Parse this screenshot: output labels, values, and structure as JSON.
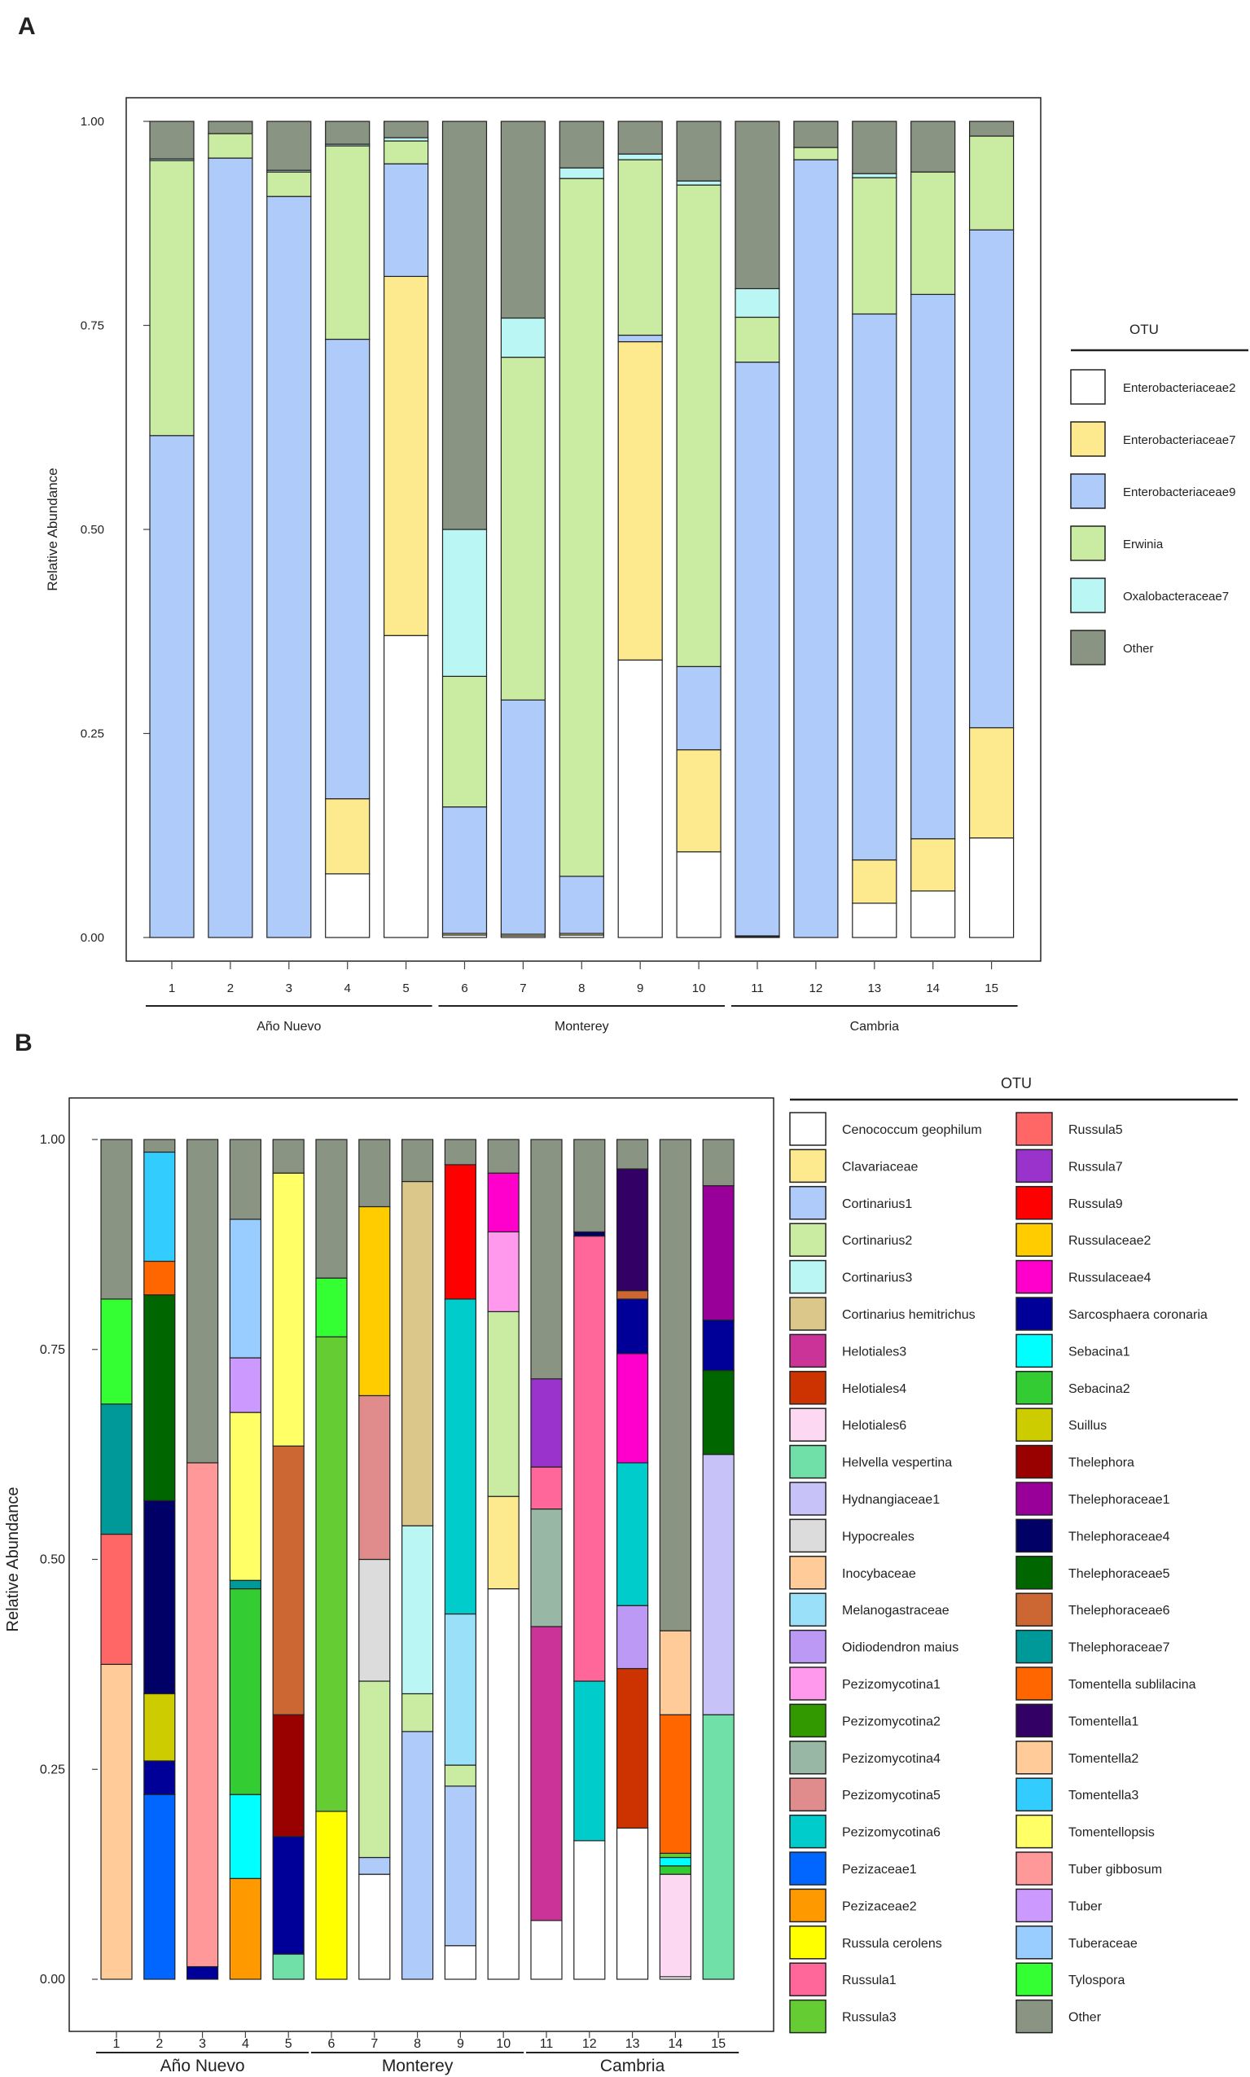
{
  "panel_a": {
    "label": "A",
    "legend_title": "OTU",
    "chart_data": {
      "type": "bar",
      "stacked": true,
      "ylabel": "Relative Abundance",
      "ylim": [
        0,
        1
      ],
      "yticks": [
        "0.00",
        "0.25",
        "0.50",
        "0.75",
        "1.00"
      ],
      "categories": [
        "1",
        "2",
        "3",
        "4",
        "5",
        "6",
        "7",
        "8",
        "9",
        "10",
        "11",
        "12",
        "13",
        "14",
        "15"
      ],
      "groups": [
        {
          "name": "Año Nuevo",
          "from": 1,
          "to": 5
        },
        {
          "name": "Monterey",
          "from": 6,
          "to": 10
        },
        {
          "name": "Cambria",
          "from": 11,
          "to": 15
        }
      ],
      "series": [
        {
          "name": "Enterobacteriaceae2",
          "color": "#ffffff",
          "values": [
            0,
            0,
            0,
            0.078,
            0.37,
            0.003,
            0.002,
            0.003,
            0.34,
            0.105,
            0.001,
            0,
            0.042,
            0.057,
            0.122
          ]
        },
        {
          "name": "Enterobacteriaceae7",
          "color": "#fde98e",
          "values": [
            0,
            0,
            0,
            0.092,
            0.44,
            0.002,
            0.002,
            0.002,
            0.39,
            0.125,
            0.001,
            0,
            0.053,
            0.064,
            0.135
          ]
        },
        {
          "name": "Enterobacteriaceae9",
          "color": "#aecbf9",
          "values": [
            0.615,
            0.955,
            0.908,
            0.563,
            0.138,
            0.155,
            0.287,
            0.07,
            0.008,
            0.102,
            0.703,
            0.953,
            0.669,
            0.667,
            0.61
          ]
        },
        {
          "name": "Erwinia",
          "color": "#c9eba2",
          "values": [
            0.337,
            0.03,
            0.03,
            0.237,
            0.028,
            0.16,
            0.42,
            0.855,
            0.215,
            0.59,
            0.055,
            0.015,
            0.167,
            0.15,
            0.115
          ]
        },
        {
          "name": "Oxalobacteraceae7",
          "color": "#b9f6f4",
          "values": [
            0.002,
            0,
            0.002,
            0.002,
            0.004,
            0.18,
            0.048,
            0.013,
            0.007,
            0.005,
            0.035,
            0,
            0.005,
            0,
            0
          ]
        },
        {
          "name": "Other",
          "color": "#8a9482",
          "values": [
            0.046,
            0.015,
            0.06,
            0.028,
            0.02,
            0.5,
            0.241,
            0.057,
            0.04,
            0.073,
            0.205,
            0.032,
            0.064,
            0.062,
            0.018
          ]
        }
      ]
    }
  },
  "panel_b": {
    "label": "B",
    "legend_title": "OTU",
    "chart_data": {
      "type": "bar",
      "stacked": true,
      "ylabel": "Relative Abundance",
      "ylim": [
        0,
        1
      ],
      "yticks": [
        "0.00",
        "0.25",
        "0.50",
        "0.75",
        "1.00"
      ],
      "categories": [
        "1",
        "2",
        "3",
        "4",
        "5",
        "6",
        "7",
        "8",
        "9",
        "10",
        "11",
        "12",
        "13",
        "14",
        "15"
      ],
      "groups": [
        {
          "name": "Año Nuevo",
          "from": 1,
          "to": 5
        },
        {
          "name": "Monterey",
          "from": 6,
          "to": 10
        },
        {
          "name": "Cambria",
          "from": 11,
          "to": 15
        }
      ],
      "legend": [
        {
          "name": "Cenococcum geophilum",
          "color": "#ffffff"
        },
        {
          "name": "Clavariaceae",
          "color": "#fde98e"
        },
        {
          "name": "Cortinarius1",
          "color": "#aecbf9"
        },
        {
          "name": "Cortinarius2",
          "color": "#c9eba2"
        },
        {
          "name": "Cortinarius3",
          "color": "#b9f6f4"
        },
        {
          "name": "Cortinarius hemitrichus",
          "color": "#dcc78a"
        },
        {
          "name": "Helotiales3",
          "color": "#cc3399"
        },
        {
          "name": "Helotiales4",
          "color": "#cc3300"
        },
        {
          "name": "Helotiales6",
          "color": "#fcd8f2"
        },
        {
          "name": "Helvella vespertina",
          "color": "#70dfa8"
        },
        {
          "name": "Hydnangiaceae1",
          "color": "#c7c3f8"
        },
        {
          "name": "Hypocreales",
          "color": "#dcdcdc"
        },
        {
          "name": "Inocybaceae",
          "color": "#ffcc99"
        },
        {
          "name": "Melanogastraceae",
          "color": "#99e0f8"
        },
        {
          "name": "Oidiodendron maius",
          "color": "#bb99f5"
        },
        {
          "name": "Pezizomycotina1",
          "color": "#ff99ee"
        },
        {
          "name": "Pezizomycotina2",
          "color": "#339900"
        },
        {
          "name": "Pezizomycotina4",
          "color": "#99b7a5"
        },
        {
          "name": "Pezizomycotina5",
          "color": "#e08c8c"
        },
        {
          "name": "Pezizomycotina6",
          "color": "#00cccc"
        },
        {
          "name": "Pezizaceae1",
          "color": "#0066ff"
        },
        {
          "name": "Pezizaceae2",
          "color": "#ff9900"
        },
        {
          "name": "Russula cerolens",
          "color": "#ffff00"
        },
        {
          "name": "Russula1",
          "color": "#ff6699"
        },
        {
          "name": "Russula3",
          "color": "#66cc33"
        },
        {
          "name": "Russula5",
          "color": "#ff6666"
        },
        {
          "name": "Russula7",
          "color": "#9933cc"
        },
        {
          "name": "Russula9",
          "color": "#ff0000"
        },
        {
          "name": "Russulaceae2",
          "color": "#ffcc00"
        },
        {
          "name": "Russulaceae4",
          "color": "#ff00cc"
        },
        {
          "name": "Sarcosphaera coronaria",
          "color": "#000099"
        },
        {
          "name": "Sebacina1",
          "color": "#00ffff"
        },
        {
          "name": "Sebacina2",
          "color": "#33cc33"
        },
        {
          "name": "Suillus",
          "color": "#cccc00"
        },
        {
          "name": "Thelephora",
          "color": "#990000"
        },
        {
          "name": "Thelephoraceae1",
          "color": "#990099"
        },
        {
          "name": "Thelephoraceae4",
          "color": "#000066"
        },
        {
          "name": "Thelephoraceae5",
          "color": "#006600"
        },
        {
          "name": "Thelephoraceae6",
          "color": "#cc6633"
        },
        {
          "name": "Thelephoraceae7",
          "color": "#009999"
        },
        {
          "name": "Tomentella sublilacina",
          "color": "#ff6600"
        },
        {
          "name": "Tomentella1",
          "color": "#330066"
        },
        {
          "name": "Tomentella2",
          "color": "#ffcc99"
        },
        {
          "name": "Tomentella3",
          "color": "#33ccff"
        },
        {
          "name": "Tomentellopsis",
          "color": "#ffff66"
        },
        {
          "name": "Tuber gibbosum",
          "color": "#ff9999"
        },
        {
          "name": "Tuber",
          "color": "#cc99ff"
        },
        {
          "name": "Tuberaceae",
          "color": "#99ccff"
        },
        {
          "name": "Tylospora",
          "color": "#33ff33"
        },
        {
          "name": "Other",
          "color": "#8a9482"
        }
      ],
      "bars": [
        {
          "sample": "1",
          "segments": [
            {
              "otu": "Inocybaceae",
              "value": 0.375
            },
            {
              "otu": "Russula5",
              "value": 0.155
            },
            {
              "otu": "Thelephoraceae7",
              "value": 0.155
            },
            {
              "otu": "Tylospora",
              "value": 0.125
            },
            {
              "otu": "Other",
              "value": 0.19
            }
          ]
        },
        {
          "sample": "2",
          "segments": [
            {
              "otu": "Pezizaceae1",
              "value": 0.22
            },
            {
              "otu": "Sarcosphaera coronaria",
              "value": 0.04
            },
            {
              "otu": "Suillus",
              "value": 0.08
            },
            {
              "otu": "Thelephoraceae4",
              "value": 0.23
            },
            {
              "otu": "Thelephoraceae5",
              "value": 0.245
            },
            {
              "otu": "Tomentella sublilacina",
              "value": 0.04
            },
            {
              "otu": "Tomentella3",
              "value": 0.13
            },
            {
              "otu": "Other",
              "value": 0.015
            }
          ]
        },
        {
          "sample": "3",
          "segments": [
            {
              "otu": "Sarcosphaera coronaria",
              "value": 0.015
            },
            {
              "otu": "Tuber gibbosum",
              "value": 0.6
            },
            {
              "otu": "Other",
              "value": 0.385
            }
          ]
        },
        {
          "sample": "4",
          "segments": [
            {
              "otu": "Pezizaceae2",
              "value": 0.12
            },
            {
              "otu": "Sebacina1",
              "value": 0.1
            },
            {
              "otu": "Sebacina2",
              "value": 0.245
            },
            {
              "otu": "Thelephoraceae7",
              "value": 0.01
            },
            {
              "otu": "Tomentellopsis",
              "value": 0.2
            },
            {
              "otu": "Tuber",
              "value": 0.065
            },
            {
              "otu": "Tuberaceae",
              "value": 0.165
            },
            {
              "otu": "Other",
              "value": 0.095
            }
          ]
        },
        {
          "sample": "5",
          "segments": [
            {
              "otu": "Helvella vespertina",
              "value": 0.03
            },
            {
              "otu": "Sarcosphaera coronaria",
              "value": 0.14
            },
            {
              "otu": "Thelephora",
              "value": 0.145
            },
            {
              "otu": "Thelephoraceae6",
              "value": 0.32
            },
            {
              "otu": "Tomentellopsis",
              "value": 0.325
            },
            {
              "otu": "Other",
              "value": 0.04
            }
          ]
        },
        {
          "sample": "6",
          "segments": [
            {
              "otu": "Russula cerolens",
              "value": 0.2
            },
            {
              "otu": "Russula3",
              "value": 0.565
            },
            {
              "otu": "Tylospora",
              "value": 0.07
            },
            {
              "otu": "Other",
              "value": 0.165
            }
          ]
        },
        {
          "sample": "7",
          "segments": [
            {
              "otu": "Cenococcum geophilum",
              "value": 0.125
            },
            {
              "otu": "Cortinarius1",
              "value": 0.02
            },
            {
              "otu": "Cortinarius2",
              "value": 0.21
            },
            {
              "otu": "Hypocreales",
              "value": 0.145
            },
            {
              "otu": "Pezizomycotina5",
              "value": 0.195
            },
            {
              "otu": "Russulaceae2",
              "value": 0.225
            },
            {
              "otu": "Other",
              "value": 0.08
            }
          ]
        },
        {
          "sample": "8",
          "segments": [
            {
              "otu": "Cortinarius1",
              "value": 0.295
            },
            {
              "otu": "Cortinarius2",
              "value": 0.045
            },
            {
              "otu": "Cortinarius3",
              "value": 0.2
            },
            {
              "otu": "Cortinarius hemitrichus",
              "value": 0.41
            },
            {
              "otu": "Other",
              "value": 0.05
            }
          ]
        },
        {
          "sample": "9",
          "segments": [
            {
              "otu": "Cenococcum geophilum",
              "value": 0.04
            },
            {
              "otu": "Cortinarius1",
              "value": 0.19
            },
            {
              "otu": "Cortinarius2",
              "value": 0.025
            },
            {
              "otu": "Melanogastraceae",
              "value": 0.18
            },
            {
              "otu": "Pezizomycotina6",
              "value": 0.375
            },
            {
              "otu": "Russula9",
              "value": 0.16
            },
            {
              "otu": "Other",
              "value": 0.03
            }
          ]
        },
        {
          "sample": "10",
          "segments": [
            {
              "otu": "Cenococcum geophilum",
              "value": 0.465
            },
            {
              "otu": "Clavariaceae",
              "value": 0.11
            },
            {
              "otu": "Cortinarius2",
              "value": 0.22
            },
            {
              "otu": "Pezizomycotina1",
              "value": 0.095
            },
            {
              "otu": "Russulaceae4",
              "value": 0.07
            },
            {
              "otu": "Other",
              "value": 0.04
            }
          ]
        },
        {
          "sample": "11",
          "segments": [
            {
              "otu": "Cenococcum geophilum",
              "value": 0.07
            },
            {
              "otu": "Helotiales3",
              "value": 0.35
            },
            {
              "otu": "Pezizomycotina4",
              "value": 0.14
            },
            {
              "otu": "Russula1",
              "value": 0.05
            },
            {
              "otu": "Russula7",
              "value": 0.105
            },
            {
              "otu": "Other",
              "value": 0.285
            }
          ]
        },
        {
          "sample": "12",
          "segments": [
            {
              "otu": "Cenococcum geophilum",
              "value": 0.165
            },
            {
              "otu": "Pezizomycotina6",
              "value": 0.19
            },
            {
              "otu": "Russula1",
              "value": 0.53
            },
            {
              "otu": "Thelephoraceae4",
              "value": 0.005
            },
            {
              "otu": "Other",
              "value": 0.11
            }
          ]
        },
        {
          "sample": "13",
          "segments": [
            {
              "otu": "Cenococcum geophilum",
              "value": 0.18
            },
            {
              "otu": "Helotiales4",
              "value": 0.19
            },
            {
              "otu": "Oidiodendron maius",
              "value": 0.075
            },
            {
              "otu": "Pezizomycotina6",
              "value": 0.17
            },
            {
              "otu": "Russulaceae4",
              "value": 0.13
            },
            {
              "otu": "Sarcosphaera coronaria",
              "value": 0.065
            },
            {
              "otu": "Thelephoraceae6",
              "value": 0.01
            },
            {
              "otu": "Tomentella1",
              "value": 0.145
            },
            {
              "otu": "Other",
              "value": 0.035
            }
          ]
        },
        {
          "sample": "14",
          "segments": [
            {
              "otu": "Cenococcum geophilum",
              "value": 0.003
            },
            {
              "otu": "Helotiales6",
              "value": 0.122
            },
            {
              "otu": "Sebacina2",
              "value": 0.01
            },
            {
              "otu": "Sebacina1",
              "value": 0.01
            },
            {
              "otu": "Russula3",
              "value": 0.005
            },
            {
              "otu": "Tomentella sublilacina",
              "value": 0.165
            },
            {
              "otu": "Tomentella2",
              "value": 0.1
            },
            {
              "otu": "Other",
              "value": 0.585
            }
          ]
        },
        {
          "sample": "15",
          "segments": [
            {
              "otu": "Helvella vespertina",
              "value": 0.315
            },
            {
              "otu": "Hydnangiaceae1",
              "value": 0.31
            },
            {
              "otu": "Thelephoraceae5",
              "value": 0.1
            },
            {
              "otu": "Sarcosphaera coronaria",
              "value": 0.06
            },
            {
              "otu": "Thelephoraceae1",
              "value": 0.16
            },
            {
              "otu": "Other",
              "value": 0.055
            }
          ]
        }
      ]
    }
  }
}
